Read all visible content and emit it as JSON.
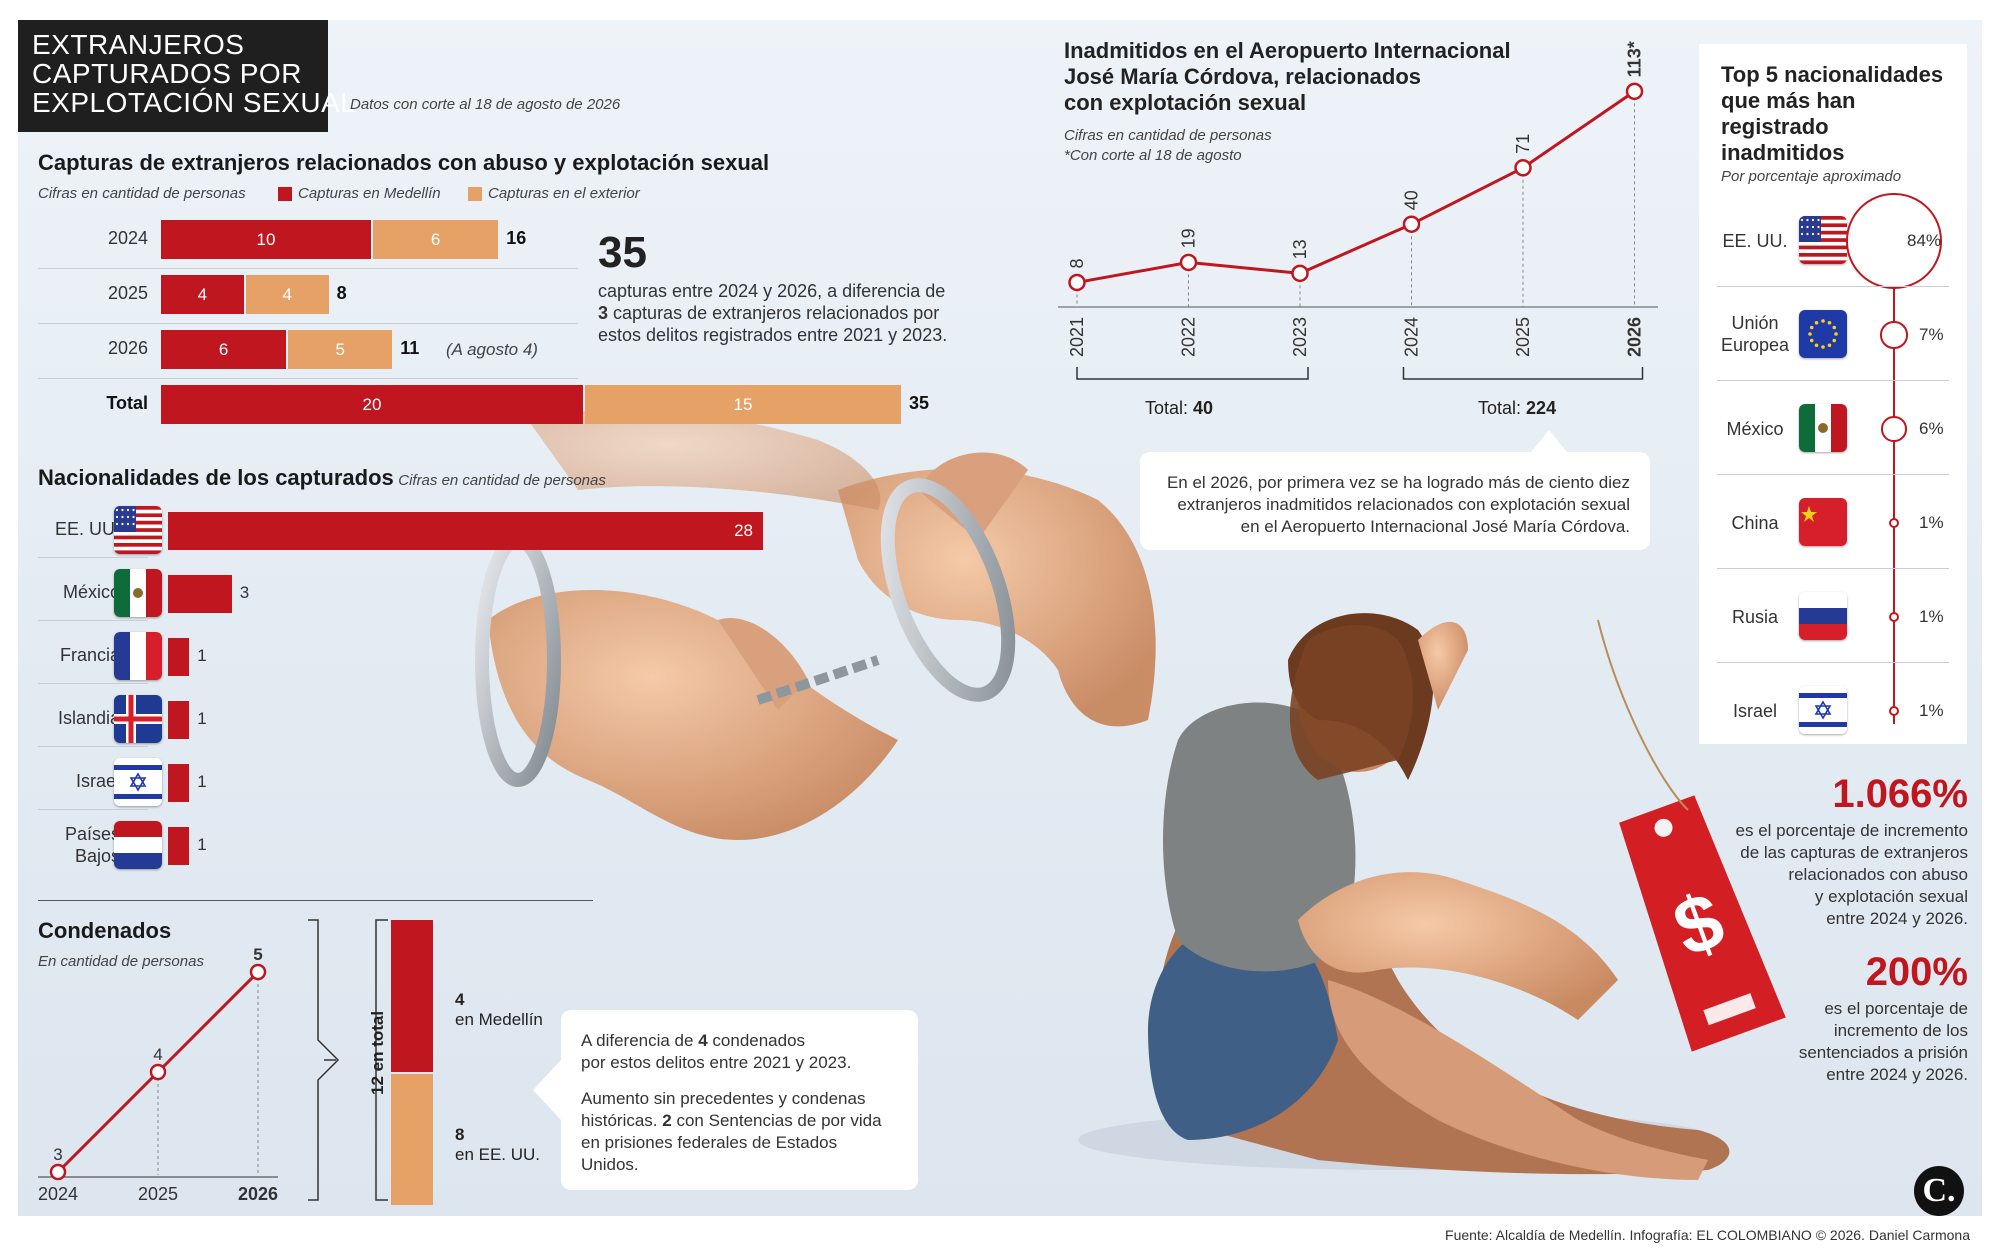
{
  "header": {
    "title_lines": [
      "EXTRANJEROS",
      "CAPTURADOS POR",
      "EXPLOTACIÓN SEXUAL"
    ],
    "date_note": "Datos con corte al 18 de agosto de 2026"
  },
  "captures": {
    "title": "Capturas de extranjeros relacionados con abuso y explotación sexual",
    "units": "Cifras en cantidad de personas",
    "legend_medellin": "Capturas en Medellín",
    "legend_exterior": "Capturas en el exterior",
    "note_2026": "(A agosto 4)",
    "total_label": "Total",
    "highlight_number": "35",
    "highlight_text_1": "capturas entre 2024 y 2026, a diferencia de",
    "highlight_bold": "3",
    "highlight_text_2": "capturas de extranjeros relacionados por",
    "highlight_text_3": "estos delitos registrados entre 2021 y 2023."
  },
  "nationalities": {
    "title": "Nacionalidades de los capturados",
    "units": "Cifras en cantidad de personas"
  },
  "condenados": {
    "title": "Condenados",
    "units": "En cantidad de personas",
    "stack_total": "12 en total",
    "medellin_value": "4",
    "medellin_label": "en Medellín",
    "eeuu_value": "8",
    "eeuu_label": "en EE. UU.",
    "note_1a": "A diferencia de",
    "note_1b": "4",
    "note_1c": "condenados",
    "note_1d": "por estos delitos entre 2021 y 2023.",
    "note_2a": "Aumento sin precedentes y condenas",
    "note_2b": "históricas.",
    "note_2c": "2",
    "note_2d": "con Sentencias de por vida",
    "note_2e": "en prisiones federales de Estados Unidos."
  },
  "airport": {
    "title_lines": [
      "Inadmitidos en el Aeropuerto Internacional",
      "José María Córdova, relacionados",
      "con explotación sexual"
    ],
    "units": "Cifras en cantidad de personas",
    "cutoff": "*Con corte al 18 de agosto",
    "total_a_label": "Total:",
    "total_a_value": "40",
    "total_b_label": "Total:",
    "total_b_value": "224",
    "note_lines": [
      "En el 2026, por primera vez se ha logrado más de ciento diez",
      "extranjeros inadmitidos relacionados con explotación sexual",
      "en el Aeropuerto Internacional José María Córdova."
    ]
  },
  "top5": {
    "title_lines": [
      "Top 5 nacionalidades",
      "que más han registrado",
      "inadmitidos"
    ],
    "units": "Por porcentaje aproximado"
  },
  "stats": {
    "stat1_value": "1.066%",
    "stat1_lines": [
      "es el porcentaje de incremento",
      "de las capturas de extranjeros",
      "relacionados con abuso",
      "y explotación sexual",
      "entre 2024 y 2026."
    ],
    "stat2_value": "200%",
    "stat2_lines": [
      "es el porcentaje de",
      "incremento de los",
      "sentenciados a prisión",
      "entre 2024 y 2026."
    ]
  },
  "source": "Fuente: Alcaldía de Medellín. Infografía: EL COLOMBIANO © 2026. Daniel Carmona",
  "logo_letter": "C.",
  "colors": {
    "red": "#c0161f",
    "tan": "#e6a167",
    "dark": "#1f1f1f"
  },
  "chart_data": [
    {
      "type": "bar",
      "title": "Capturas de extranjeros relacionados con abuso y explotación sexual",
      "orientation": "horizontal-stacked",
      "categories": [
        "2024",
        "2025",
        "2026",
        "Total"
      ],
      "series": [
        {
          "name": "Capturas en Medellín",
          "values": [
            10,
            4,
            6,
            20
          ]
        },
        {
          "name": "Capturas en el exterior",
          "values": [
            6,
            4,
            5,
            15
          ]
        }
      ],
      "totals": [
        16,
        8,
        11,
        35
      ]
    },
    {
      "type": "bar",
      "title": "Nacionalidades de los capturados",
      "orientation": "horizontal",
      "categories": [
        "EE. UU.",
        "México",
        "Francia",
        "Islandia",
        "Israel",
        "Países Bajos"
      ],
      "values": [
        28,
        3,
        1,
        1,
        1,
        1
      ],
      "flags": [
        "us-flag",
        "mexico-flag",
        "france-flag",
        "iceland-flag",
        "israel-flag",
        "netherlands-flag"
      ]
    },
    {
      "type": "line",
      "title": "Condenados",
      "x": [
        "2024",
        "2025",
        "2026"
      ],
      "values": [
        3,
        4,
        5
      ],
      "stack": {
        "total": 12,
        "parts": [
          {
            "name": "en Medellín",
            "value": 4
          },
          {
            "name": "en EE. UU.",
            "value": 8
          }
        ]
      }
    },
    {
      "type": "line",
      "title": "Inadmitidos en el Aeropuerto Internacional José María Córdova, relacionados con explotación sexual",
      "x": [
        "2021",
        "2022",
        "2023",
        "2024",
        "2025",
        "2026"
      ],
      "values": [
        8,
        19,
        13,
        40,
        71,
        113
      ],
      "value_labels": [
        "8",
        "19",
        "13",
        "40",
        "71",
        "113*"
      ],
      "totals": [
        {
          "range": "2021-2023",
          "value": 40
        },
        {
          "range": "2024-2026",
          "value": 224
        }
      ]
    },
    {
      "type": "bar",
      "title": "Top 5 nacionalidades que más han registrado inadmitidos",
      "categories": [
        "EE. UU.",
        "Unión Europea",
        "México",
        "China",
        "Rusia",
        "Israel"
      ],
      "values": [
        84,
        7,
        6,
        1,
        1,
        1
      ],
      "value_labels": [
        "84%",
        "7%",
        "6%",
        "1%",
        "1%",
        "1%"
      ],
      "flags": [
        "us-flag",
        "eu-flag",
        "mexico-flag",
        "china-flag",
        "russia-flag",
        "israel-flag"
      ]
    }
  ]
}
